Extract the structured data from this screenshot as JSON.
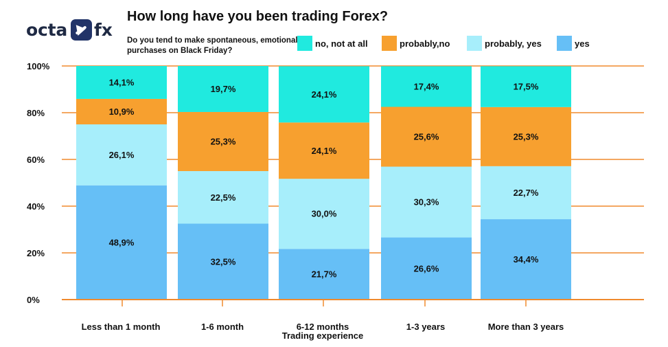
{
  "brand": {
    "logo_left": "octa",
    "logo_right": "fx",
    "logo_icon": "octafx-logo-icon"
  },
  "header": {
    "title": "How long have you been trading Forex?",
    "subtitle": "Do you tend to make spontaneous, emotional purchases on Black Friday?"
  },
  "chart_data": {
    "type": "bar",
    "stacked": true,
    "percent_stacked": true,
    "title": "How long have you been trading Forex?",
    "subtitle": "Do you tend to make spontaneous, emotional purchases on Black Friday?",
    "xlabel": "Trading experience",
    "ylabel": "",
    "ylim": [
      0,
      100
    ],
    "yticks": [
      "0%",
      "20%",
      "40%",
      "60%",
      "80%",
      "100%"
    ],
    "categories": [
      "Less than 1 month",
      "1-6 month",
      "6-12 months",
      "1-3 years",
      "More than 3 years"
    ],
    "series": [
      {
        "name": "yes",
        "color": "#66bff6",
        "values": [
          48.9,
          32.5,
          21.7,
          26.6,
          34.4
        ],
        "labels": [
          "48,9%",
          "32,5%",
          "21,7%",
          "26,6%",
          "34,4%"
        ]
      },
      {
        "name": "probably, yes",
        "color": "#a7eefb",
        "values": [
          26.1,
          22.5,
          30.0,
          30.3,
          22.7
        ],
        "labels": [
          "26,1%",
          "22,5%",
          "30,0%",
          "30,3%",
          "22,7%"
        ]
      },
      {
        "name": "probably,no",
        "color": "#f7a02f",
        "values": [
          10.9,
          25.3,
          24.1,
          25.6,
          25.3
        ],
        "labels": [
          "10,9%",
          "25,3%",
          "24,1%",
          "25,6%",
          "25,3%"
        ]
      },
      {
        "name": "no, not at all",
        "color": "#20eadf",
        "values": [
          14.1,
          19.7,
          24.1,
          17.4,
          17.5
        ],
        "labels": [
          "14,1%",
          "19,7%",
          "24,1%",
          "17,4%",
          "17,5%"
        ]
      }
    ],
    "legend": {
      "placement": "top-right",
      "order": [
        "no, not at all",
        "probably,no",
        "probably, yes",
        "yes"
      ]
    },
    "grid": true,
    "grid_color": "#f08a2d"
  }
}
